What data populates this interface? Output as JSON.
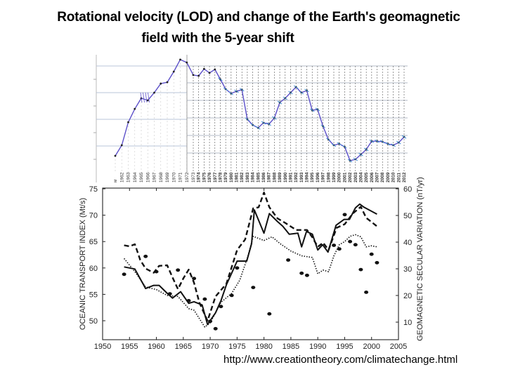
{
  "slide": {
    "title_line1": "Rotational velocity (LOD) and change of the Earth's geomagnetic",
    "title_line2": "field with the 5-year shift",
    "source_url": "http://www.creationtheory.com/climatechange.html"
  },
  "colors": {
    "lod_line": "#5b4fc9",
    "lod_markers": "#3f8fd6",
    "grid": "#b8c4d8",
    "lower_series": "#111111"
  },
  "chart_data": [
    {
      "type": "line",
      "title": "Rotational velocity (LOD)",
      "xlabel": "",
      "ylabel": "",
      "note": "y values in relative gridline units (axis labels not legible)",
      "first_year_label": "м",
      "x": [
        1961,
        1962,
        1963,
        1964,
        1965,
        1966,
        1967,
        1968,
        1969,
        1970,
        1971,
        1972,
        1973,
        1974,
        1975,
        1976,
        1977,
        1978,
        1979,
        1980,
        1981,
        1982,
        1983,
        1984,
        1985,
        1986,
        1987,
        1988,
        1989,
        1990,
        1991,
        1992,
        1993,
        1994,
        1995,
        1996,
        1997,
        1998,
        1999,
        2000,
        2001,
        2002,
        2003,
        2004,
        2005,
        2006,
        2007,
        2008,
        2009,
        2010,
        2011,
        2012
      ],
      "x_tick_labels": [
        "м",
        "1962",
        "1963",
        "1964",
        "1965",
        "1966",
        "1967",
        "1968",
        "1969",
        "1970",
        "1971",
        "1972",
        "1973",
        "1974",
        "1975",
        "1976",
        "1977",
        "1978",
        "1979",
        "1980",
        "1981",
        "1982",
        "1983",
        "1984",
        "1985",
        "1986",
        "1987",
        "1988",
        "1989",
        "1990",
        "1991",
        "1992",
        "1993",
        "1994",
        "1995",
        "1996",
        "1997",
        "1998",
        "1999",
        "2000",
        "2001",
        "2002",
        "2003",
        "2004",
        "2005",
        "2006",
        "2007",
        "2008",
        "2009",
        "2010",
        "2011",
        "2012"
      ],
      "values": [
        0.63,
        1.03,
        1.89,
        2.39,
        2.79,
        2.71,
        3.0,
        3.34,
        3.39,
        3.79,
        4.24,
        4.13,
        3.66,
        3.63,
        3.89,
        3.74,
        3.87,
        3.5,
        3.13,
        2.97,
        3.05,
        3.11,
        2.0,
        1.79,
        1.68,
        1.87,
        1.82,
        2.05,
        2.63,
        2.79,
        3.0,
        3.21,
        3.0,
        3.08,
        2.34,
        2.37,
        1.74,
        1.24,
        1.03,
        1.08,
        0.97,
        0.45,
        0.5,
        0.68,
        0.87,
        1.18,
        1.18,
        1.16,
        1.08,
        1.03,
        1.13,
        1.34
      ],
      "ylim": [
        0,
        4.6
      ],
      "grid": true
    },
    {
      "type": "line",
      "title": "",
      "xlabel": "",
      "ylabel": "OCEANIC TRANSPORT INDEX (Mt/s)",
      "ylabel_right": "GEOMAGNETIC SECULAR VARIATION (nT/yr)",
      "xlim": [
        1950,
        2005
      ],
      "ylim": [
        47.5,
        75
      ],
      "ylim_right": [
        6,
        60
      ],
      "x_ticks": [
        "1950",
        "1955",
        "1960",
        "1965",
        "1970",
        "1975",
        "1980",
        "1985",
        "1990",
        "1995",
        "2000",
        "2005"
      ],
      "y_ticks": [
        "50",
        "55",
        "60",
        "65",
        "70",
        "75"
      ],
      "y_ticks_right": [
        "10",
        "20",
        "30",
        "40",
        "50",
        "60"
      ],
      "grid": false,
      "series": [
        {
          "name": "solid",
          "axis": "left",
          "x": [
            1954,
            1956,
            1958,
            1959.5,
            1960.5,
            1962,
            1963,
            1964.5,
            1966,
            1967,
            1968.5,
            1969.5,
            1971,
            1972,
            1973,
            1975,
            1976.8,
            1977.7,
            1978.2,
            1980,
            1981,
            1982.5,
            1983.5,
            1984.7,
            1986.3,
            1987,
            1987.9,
            1989,
            1990,
            1990.9,
            1991.9,
            1993.4,
            1994.9,
            1995.9,
            1997,
            1997.8,
            1998.6,
            2001
          ],
          "values": [
            60.2,
            59.8,
            56.1,
            56.7,
            56.7,
            55.2,
            54.3,
            55.5,
            53.3,
            53.6,
            53.0,
            49.3,
            51.5,
            53.8,
            56.8,
            61.3,
            61.3,
            64.6,
            71.0,
            66.6,
            70.3,
            68.8,
            67.9,
            66.4,
            66.6,
            64.0,
            66.9,
            66.4,
            63.4,
            64.4,
            63.0,
            68.1,
            69.2,
            69.2,
            71.4,
            72.1,
            71.5,
            70.2
          ]
        },
        {
          "name": "dashed",
          "axis": "left",
          "x": [
            1954,
            1955,
            1956,
            1957,
            1958,
            1959.5,
            1960.5,
            1962,
            1963,
            1964,
            1965,
            1966,
            1967,
            1968,
            1969.5,
            1971,
            1973,
            1975,
            1976.5,
            1978,
            1979,
            1980,
            1981,
            1982.5,
            1984,
            1986,
            1988,
            1989,
            1990,
            1991,
            1992,
            1993.5,
            1995,
            1996.5,
            1998,
            1999,
            2001
          ],
          "values": [
            64.3,
            64.1,
            64.5,
            61.5,
            59.9,
            59.1,
            60.4,
            60.5,
            58.2,
            56.0,
            58.0,
            59.7,
            57.2,
            53.4,
            50.0,
            54.6,
            57.0,
            63.4,
            65.4,
            71.3,
            71.5,
            74.3,
            71.5,
            69.4,
            68.5,
            67.2,
            67.2,
            65.8,
            64.0,
            64.8,
            63.4,
            67.6,
            68.3,
            70.3,
            71.6,
            69.5,
            67.9
          ]
        },
        {
          "name": "dotted",
          "axis": "left",
          "x": [
            1954,
            1956,
            1958,
            1960,
            1962,
            1964,
            1966,
            1967,
            1969,
            1970,
            1972,
            1974,
            1975.5,
            1977,
            1978,
            1980,
            1981.5,
            1983,
            1985,
            1987,
            1989,
            1990,
            1991,
            1992,
            1993,
            1994,
            1995,
            1996,
            1997,
            1998,
            1999,
            2000,
            2001
          ],
          "values": [
            61.8,
            59.3,
            56.4,
            55.9,
            54.8,
            54.6,
            52.3,
            52.0,
            48.8,
            49.6,
            53.5,
            55.2,
            57.7,
            62.2,
            66.0,
            65.2,
            65.9,
            64.6,
            63.2,
            62.3,
            62.0,
            58.9,
            59.6,
            59.3,
            62.3,
            64.4,
            65.0,
            66.0,
            66.3,
            65.9,
            64.0,
            64.2,
            64.0
          ]
        },
        {
          "name": "dots",
          "axis": "left",
          "x": [
            1954,
            1958,
            1960,
            1962.5,
            1964,
            1966,
            1967,
            1969,
            1970,
            1971,
            1972,
            1974,
            1975,
            1978,
            1981,
            1984.5,
            1987,
            1988,
            1993,
            1994,
            1995,
            1996,
            1997,
            1998,
            1999,
            2000,
            2001
          ],
          "values": [
            58.8,
            62.2,
            59.3,
            55.1,
            59.6,
            53.8,
            58.0,
            54.1,
            49.9,
            48.5,
            52.7,
            54.8,
            60.0,
            56.3,
            51.3,
            61.5,
            59.0,
            58.6,
            64.3,
            63.6,
            70.1,
            65.0,
            64.4,
            59.7,
            55.4,
            62.6,
            61.0
          ]
        }
      ]
    }
  ]
}
